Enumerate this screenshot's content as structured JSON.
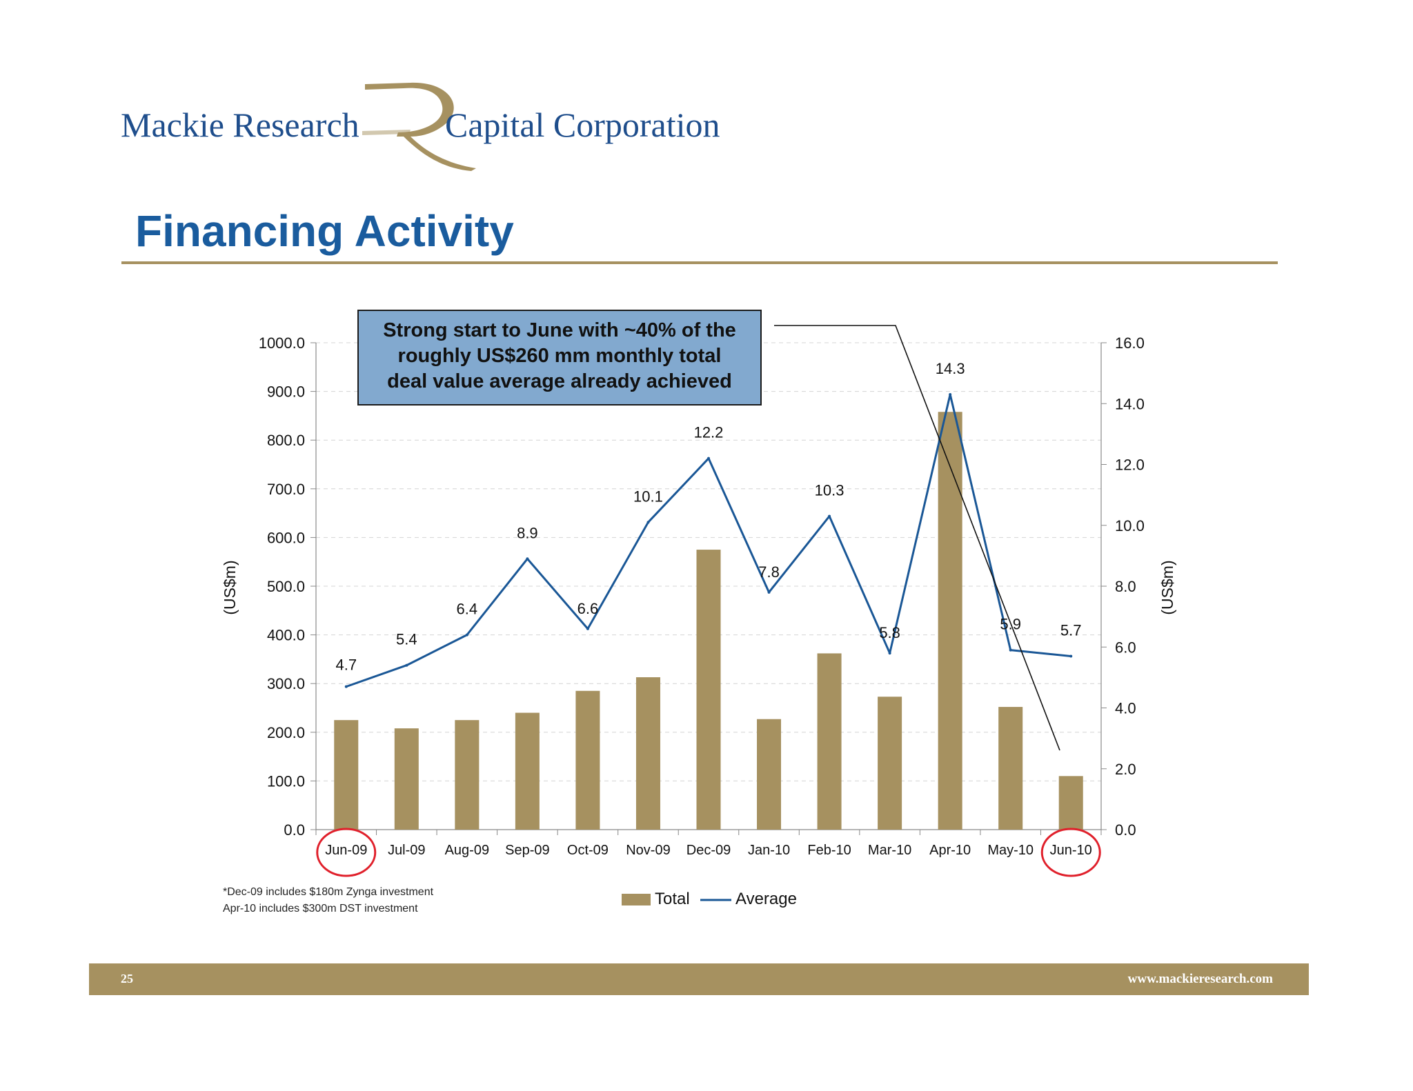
{
  "logo": {
    "left_text": "Mackie Research",
    "right_text": "Capital Corporation",
    "navy": "#1f4e8c",
    "gold": "#a69160"
  },
  "slide": {
    "title": "Financing Activity",
    "page_number": "25",
    "url": "www.mackieresearch.com"
  },
  "callout": {
    "lines": [
      "Strong start to June with ~40% of the",
      "roughly US$260 mm monthly total",
      "deal value average already achieved"
    ],
    "color": "#82a9cf"
  },
  "notes": [
    "*Dec-09 includes $180m Zynga investment",
    "Apr-10 includes $300m DST investment"
  ],
  "chart_data": {
    "type": "bar",
    "categories": [
      "Jun-09",
      "Jul-09",
      "Aug-09",
      "Sep-09",
      "Oct-09",
      "Nov-09",
      "Dec-09",
      "Jan-10",
      "Feb-10",
      "Mar-10",
      "Apr-10",
      "May-10",
      "Jun-10"
    ],
    "series": [
      {
        "name": "Total",
        "type": "bar",
        "axis": "left",
        "color": "#a69160",
        "values": [
          225,
          208,
          225,
          240,
          285,
          313,
          575,
          227,
          362,
          273,
          858,
          252,
          110
        ]
      },
      {
        "name": "Average",
        "type": "line",
        "axis": "right",
        "color": "#1a5796",
        "values": [
          4.7,
          5.4,
          6.4,
          8.9,
          6.6,
          10.1,
          12.2,
          7.8,
          10.3,
          5.8,
          14.3,
          5.9,
          5.7
        ],
        "labels": [
          "4.7",
          "5.4",
          "6.4",
          "8.9",
          "6.6",
          "10.1",
          "12.2",
          "7.8",
          "10.3",
          "5.8",
          "14.3",
          "5.9",
          "5.7"
        ]
      }
    ],
    "ylabel": "(US$m)",
    "y2label": "(US$m)",
    "ylim": [
      0,
      1000
    ],
    "y2lim": [
      0,
      16
    ],
    "yticks": [
      "0.0",
      "100.0",
      "200.0",
      "300.0",
      "400.0",
      "500.0",
      "600.0",
      "700.0",
      "800.0",
      "900.0",
      "1000.0"
    ],
    "y2ticks": [
      "0.0",
      "2.0",
      "4.0",
      "6.0",
      "8.0",
      "10.0",
      "12.0",
      "14.0",
      "16.0"
    ],
    "grid": true,
    "highlighted_categories": [
      "Jun-09",
      "Jun-10"
    ],
    "legend": {
      "position": "bottom"
    }
  }
}
